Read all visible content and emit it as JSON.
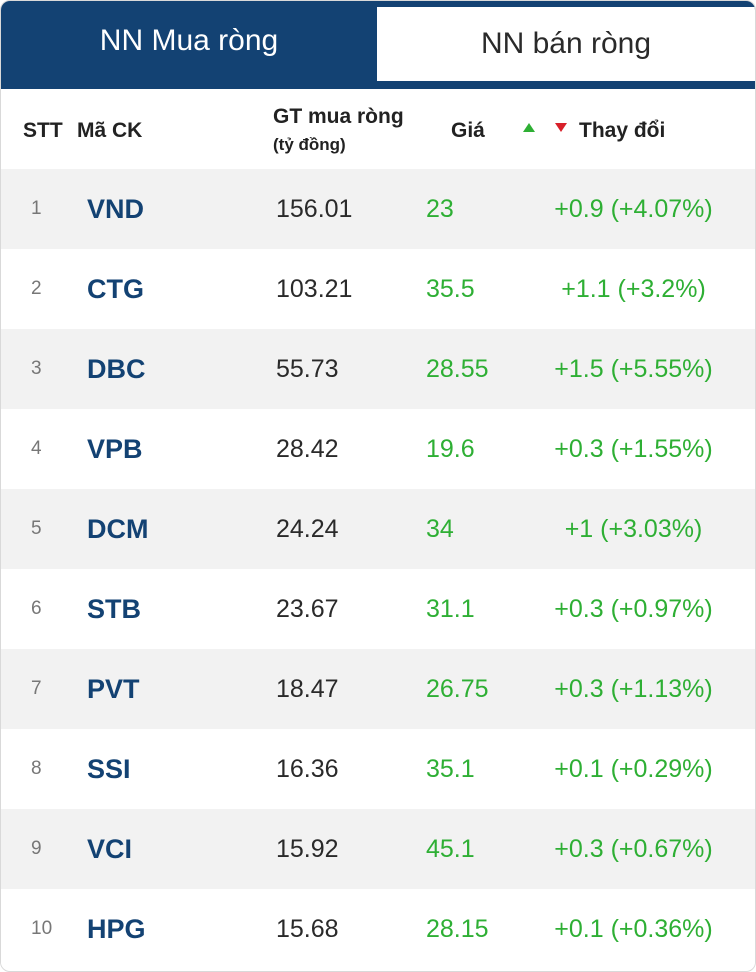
{
  "tabs": [
    {
      "label": "NN Mua ròng",
      "active": true
    },
    {
      "label": "NN bán ròng",
      "active": false
    }
  ],
  "table": {
    "headers": {
      "stt": "STT",
      "ma_ck": "Mã CK",
      "gt": "GT mua ròng",
      "gt_unit": "(tỷ đồng)",
      "gia": "Giá",
      "change": "Thay đổi"
    },
    "rows": [
      {
        "stt": "1",
        "ma": "VND",
        "gt": "156.01",
        "gia": "23",
        "change": "+0.9 (+4.07%)"
      },
      {
        "stt": "2",
        "ma": "CTG",
        "gt": "103.21",
        "gia": "35.5",
        "change": "+1.1 (+3.2%)"
      },
      {
        "stt": "3",
        "ma": "DBC",
        "gt": "55.73",
        "gia": "28.55",
        "change": "+1.5 (+5.55%)"
      },
      {
        "stt": "4",
        "ma": "VPB",
        "gt": "28.42",
        "gia": "19.6",
        "change": "+0.3 (+1.55%)"
      },
      {
        "stt": "5",
        "ma": "DCM",
        "gt": "24.24",
        "gia": "34",
        "change": "+1 (+3.03%)"
      },
      {
        "stt": "6",
        "ma": "STB",
        "gt": "23.67",
        "gia": "31.1",
        "change": "+0.3 (+0.97%)"
      },
      {
        "stt": "7",
        "ma": "PVT",
        "gt": "18.47",
        "gia": "26.75",
        "change": "+0.3 (+1.13%)"
      },
      {
        "stt": "8",
        "ma": "SSI",
        "gt": "16.36",
        "gia": "35.1",
        "change": "+0.1 (+0.29%)"
      },
      {
        "stt": "9",
        "ma": "VCI",
        "gt": "15.92",
        "gia": "45.1",
        "change": "+0.3 (+0.67%)"
      },
      {
        "stt": "10",
        "ma": "HPG",
        "gt": "15.68",
        "gia": "28.15",
        "change": "+0.1 (+0.36%)"
      }
    ]
  },
  "colors": {
    "brand_navy": "#134273",
    "up_green": "#2eaf34",
    "down_red": "#d8202a",
    "row_stripe": "#f2f2f2"
  }
}
